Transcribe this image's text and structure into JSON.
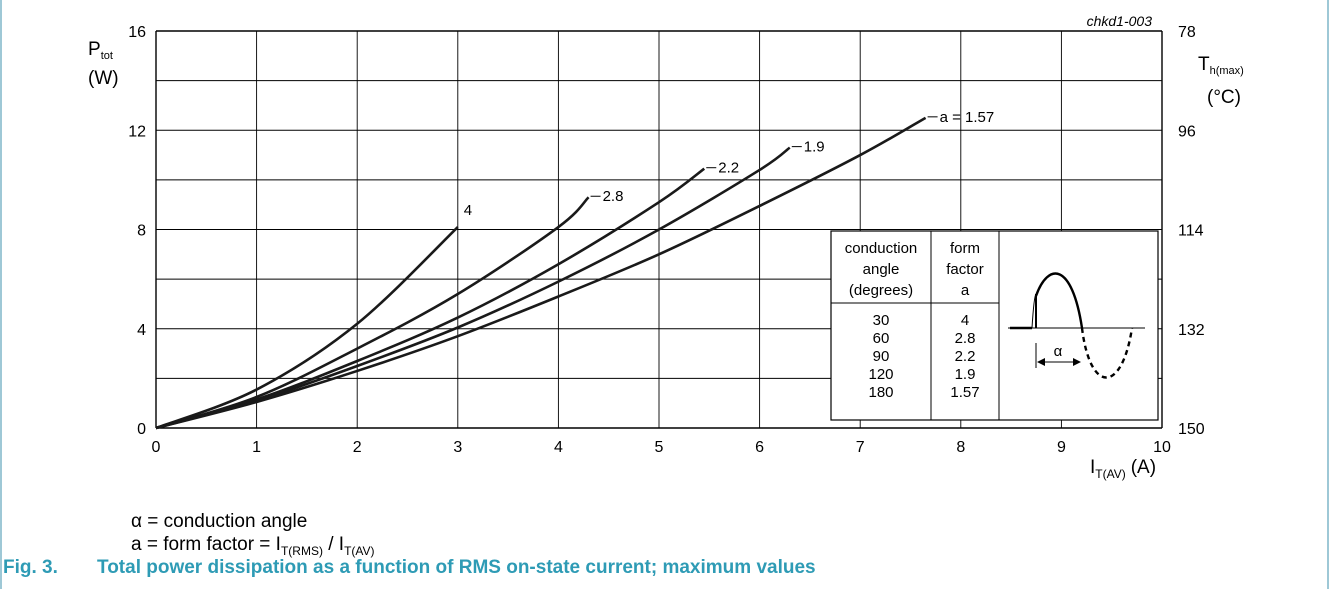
{
  "figure": {
    "code": "chkd1-003",
    "notes": {
      "alpha_line": "α = conduction angle",
      "form_prefix": "a = form factor = I",
      "form_sub1": "T(RMS)",
      "form_mid": " / I",
      "form_sub2": "T(AV)"
    },
    "caption": {
      "number": "Fig. 3.",
      "text": "Total power dissipation as a function of RMS on-state current; maximum values"
    },
    "colors": {
      "caption": "#2e9bb5",
      "frame": "#7fb5c8",
      "grid": "#000000",
      "curve": "#1a1a1a"
    }
  },
  "chart_data": {
    "type": "line",
    "x_label": {
      "main": "I",
      "sub": "T(AV)",
      "unit": "(A)"
    },
    "y_label": {
      "main": "P",
      "sub": "tot",
      "unit": "(W)"
    },
    "y2_label": {
      "main": "T",
      "sub": "h(max)",
      "unit": "(°C)"
    },
    "xlim": [
      0,
      10
    ],
    "ylim": [
      0,
      16
    ],
    "x_ticks": [
      0,
      1,
      2,
      3,
      4,
      5,
      6,
      7,
      8,
      9,
      10
    ],
    "y_ticks": [
      0,
      4,
      8,
      12,
      16
    ],
    "y2_ticks": [
      {
        "label": "150",
        "at": 0
      },
      {
        "label": "132",
        "at": 4
      },
      {
        "label": "114",
        "at": 8
      },
      {
        "label": "96",
        "at": 12
      },
      {
        "label": "78",
        "at": 16
      }
    ],
    "grid": true,
    "series": [
      {
        "name": "4",
        "points": [
          [
            0,
            0
          ],
          [
            1,
            1.55
          ],
          [
            2,
            4.2
          ],
          [
            3,
            8.1
          ]
        ]
      },
      {
        "name": "2.8",
        "points": [
          [
            0,
            0
          ],
          [
            1,
            1.25
          ],
          [
            2,
            3.2
          ],
          [
            3,
            5.4
          ],
          [
            4,
            8.1
          ],
          [
            4.3,
            9.3
          ]
        ]
      },
      {
        "name": "2.2",
        "points": [
          [
            0,
            0
          ],
          [
            1,
            1.15
          ],
          [
            2,
            2.7
          ],
          [
            3,
            4.45
          ],
          [
            4,
            6.6
          ],
          [
            5,
            9.1
          ],
          [
            5.45,
            10.45
          ]
        ]
      },
      {
        "name": "1.9",
        "points": [
          [
            0,
            0
          ],
          [
            1,
            1.1
          ],
          [
            2,
            2.5
          ],
          [
            3,
            4.05
          ],
          [
            4,
            5.9
          ],
          [
            5,
            8.0
          ],
          [
            6,
            10.4
          ],
          [
            6.3,
            11.3
          ]
        ]
      },
      {
        "name": "a = 1.57",
        "points": [
          [
            0,
            0
          ],
          [
            1,
            1.05
          ],
          [
            2,
            2.3
          ],
          [
            3,
            3.7
          ],
          [
            4,
            5.3
          ],
          [
            5,
            7.0
          ],
          [
            6,
            8.95
          ],
          [
            7,
            11.0
          ],
          [
            7.65,
            12.5
          ]
        ]
      }
    ],
    "table": {
      "headers": [
        [
          "conduction",
          "angle",
          "(degrees)"
        ],
        [
          "form",
          "factor",
          "a"
        ]
      ],
      "rows": [
        [
          "30",
          "4"
        ],
        [
          "60",
          "2.8"
        ],
        [
          "90",
          "2.2"
        ],
        [
          "120",
          "1.9"
        ],
        [
          "180",
          "1.57"
        ]
      ],
      "diagram_label": "α"
    }
  }
}
